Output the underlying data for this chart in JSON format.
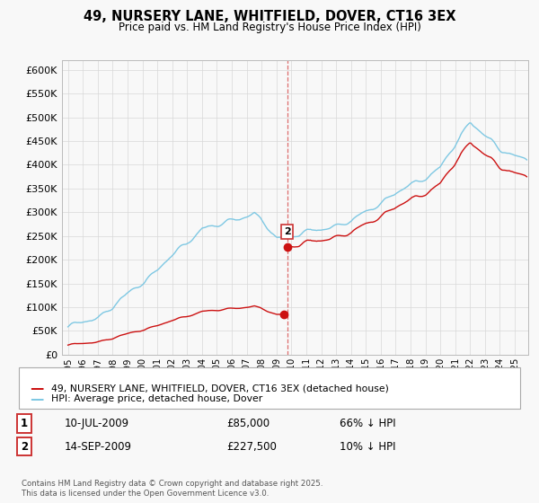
{
  "title": "49, NURSERY LANE, WHITFIELD, DOVER, CT16 3EX",
  "subtitle": "Price paid vs. HM Land Registry's House Price Index (HPI)",
  "hpi_color": "#7ec8e3",
  "property_color": "#cc1111",
  "dashed_line_color": "#cc1111",
  "background_color": "#f8f8f8",
  "grid_color": "#d8d8d8",
  "ylim": [
    0,
    620000
  ],
  "yticks": [
    0,
    50000,
    100000,
    150000,
    200000,
    250000,
    300000,
    350000,
    400000,
    450000,
    500000,
    550000,
    600000
  ],
  "legend_label_property": "49, NURSERY LANE, WHITFIELD, DOVER, CT16 3EX (detached house)",
  "legend_label_hpi": "HPI: Average price, detached house, Dover",
  "sale1_label": "1",
  "sale1_date": "10-JUL-2009",
  "sale1_price": 85000,
  "sale1_text": "£85,000",
  "sale1_hpi_text": "66% ↓ HPI",
  "sale2_label": "2",
  "sale2_date": "14-SEP-2009",
  "sale2_price": 227500,
  "sale2_text": "£227,500",
  "sale2_hpi_text": "10% ↓ HPI",
  "footnote": "Contains HM Land Registry data © Crown copyright and database right 2025.\nThis data is licensed under the Open Government Licence v3.0.",
  "sale1_year": 2009.52,
  "sale2_year": 2009.71,
  "xlim_left": 1994.6,
  "xlim_right": 2025.9
}
